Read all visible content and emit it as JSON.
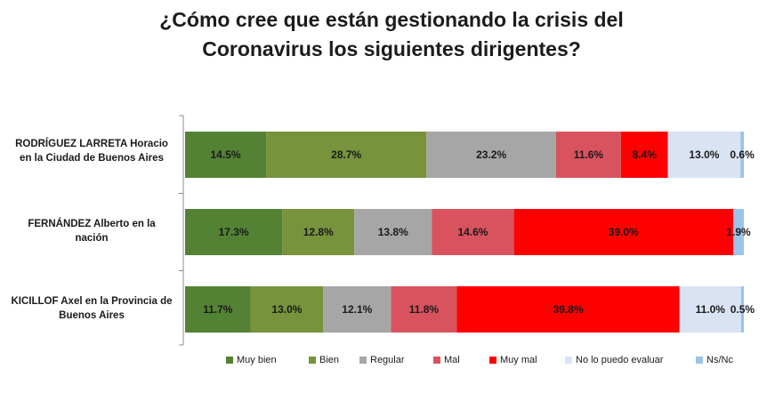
{
  "chart_data": {
    "type": "bar",
    "orientation": "horizontal",
    "stacked": true,
    "normalized": true,
    "title_lines": [
      "¿Cómo cree que están gestionando la crisis del",
      "Coronavirus los siguientes dirigentes?"
    ],
    "categories": [
      [
        "RODRÍGUEZ LARRETA Horacio",
        "en la Ciudad de Buenos Aires"
      ],
      [
        "FERNÁNDEZ Alberto en la",
        "nación"
      ],
      [
        "KICILLOF Axel en la Provincia de",
        "Buenos Aires"
      ]
    ],
    "series": [
      {
        "name": "Muy bien",
        "color": "#548235",
        "values": [
          14.5,
          17.3,
          11.7
        ],
        "labels": [
          "14.5%",
          "17.3%",
          "11.7%"
        ]
      },
      {
        "name": "Bien",
        "color": "#77933c",
        "values": [
          28.7,
          12.8,
          13.0
        ],
        "labels": [
          "28.7%",
          "12.8%",
          "13.0%"
        ]
      },
      {
        "name": "Regular",
        "color": "#a6a6a6",
        "values": [
          23.2,
          13.8,
          12.1
        ],
        "labels": [
          "23.2%",
          "13.8%",
          "12.1%"
        ]
      },
      {
        "name": "Mal",
        "color": "#d9535f",
        "values": [
          11.6,
          14.6,
          11.8
        ],
        "labels": [
          "11.6%",
          "14.6%",
          "11.8%"
        ]
      },
      {
        "name": "Muy mal",
        "color": "#ff0000",
        "values": [
          8.4,
          39.0,
          39.8
        ],
        "labels": [
          "8.4%",
          "39.0%",
          "39.8%"
        ]
      },
      {
        "name": "No lo puedo evaluar",
        "color": "#dae3f3",
        "values": [
          13.0,
          0.0,
          11.0
        ],
        "labels": [
          "13.0%",
          "",
          "11.0%"
        ]
      },
      {
        "name": "Ns/Nc",
        "color": "#9dc3e6",
        "values": [
          0.6,
          1.9,
          0.5
        ],
        "labels": [
          "0.6%",
          "1.9%",
          "0.5%"
        ]
      }
    ],
    "xlim": [
      0,
      100
    ],
    "legend_position": "bottom"
  }
}
